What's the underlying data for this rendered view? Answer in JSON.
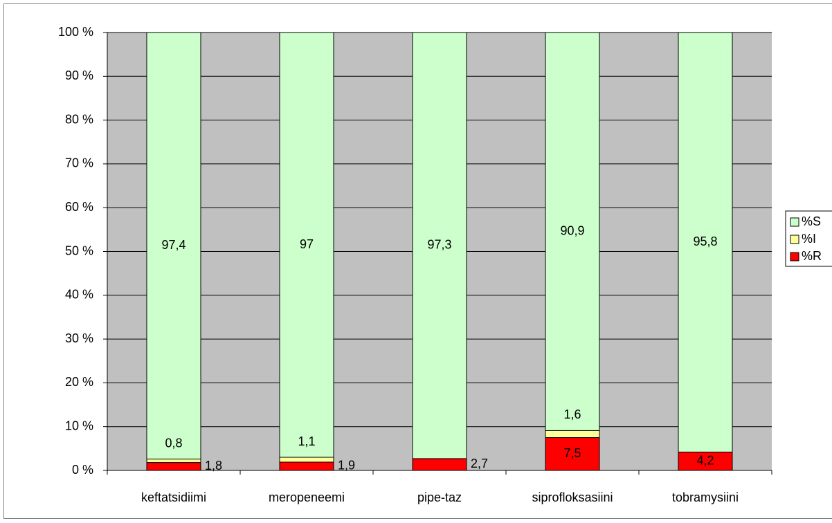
{
  "chart_data": {
    "type": "stacked_bar",
    "categories": [
      "keftatsidiimi",
      "meropeneemi",
      "pipe-taz",
      "siprofloksasiini",
      "tobramysiini"
    ],
    "series": [
      {
        "name": "%S",
        "color": "#ccffcc",
        "values": [
          97.4,
          97,
          97.3,
          90.9,
          95.8
        ],
        "value_labels": [
          "97,4",
          "97",
          "97,3",
          "90,9",
          "95,8"
        ]
      },
      {
        "name": "%I",
        "color": "#ffff99",
        "values": [
          0.8,
          1.1,
          null,
          1.6,
          null
        ],
        "value_labels": [
          "0,8",
          "1,1",
          null,
          "1,6",
          null
        ]
      },
      {
        "name": "%R",
        "color": "#ff0000",
        "values": [
          1.8,
          1.9,
          2.7,
          7.5,
          4.2
        ],
        "value_labels": [
          "1,8",
          "1,9",
          "2,7",
          "7,5",
          "4,2"
        ]
      }
    ],
    "ylim": [
      0,
      100
    ],
    "yticks": [
      {
        "value": 0,
        "label": "0 %"
      },
      {
        "value": 10,
        "label": "10 %"
      },
      {
        "value": 20,
        "label": "20 %"
      },
      {
        "value": 30,
        "label": "30 %"
      },
      {
        "value": 40,
        "label": "40 %"
      },
      {
        "value": 50,
        "label": "50 %"
      },
      {
        "value": 60,
        "label": "60 %"
      },
      {
        "value": 70,
        "label": "70 %"
      },
      {
        "value": 80,
        "label": "80 %"
      },
      {
        "value": 90,
        "label": "90 %"
      },
      {
        "value": 100,
        "label": "100 %"
      }
    ],
    "grid": true,
    "legend": "right"
  }
}
